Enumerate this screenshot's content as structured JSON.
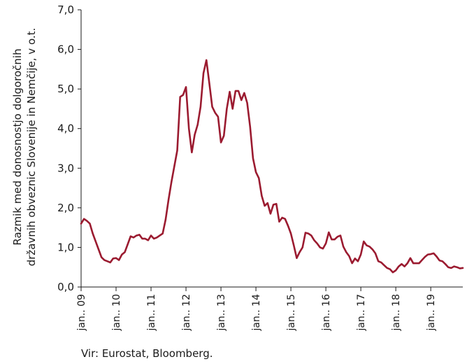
{
  "chart_data": {
    "type": "line",
    "title": "",
    "xlabel": "",
    "ylabel_lines": [
      "Razmik med donosnostjo dolgoročnih",
      "državnih obveznic Slovenije in Nemčije, v o.t."
    ],
    "source": "Vir: Eurostat, Bloomberg.",
    "x_start": "2009-01",
    "x_end": "2019-12",
    "ylim": [
      0,
      7
    ],
    "y_ticks": [
      "0,0",
      "1,0",
      "2,0",
      "3,0",
      "4,0",
      "5,0",
      "6,0",
      "7,0"
    ],
    "x_ticks": [
      {
        "label": "jan.. 09",
        "date": "2009-01"
      },
      {
        "label": "jan.. 10",
        "date": "2010-01"
      },
      {
        "label": "jan.. 11",
        "date": "2011-01"
      },
      {
        "label": "jan.. 12",
        "date": "2012-01"
      },
      {
        "label": "jan.. 13",
        "date": "2013-01"
      },
      {
        "label": "jan.. 14",
        "date": "2014-01"
      },
      {
        "label": "jan.. 15",
        "date": "2015-01"
      },
      {
        "label": "jan.. 16",
        "date": "2016-01"
      },
      {
        "label": "jan.. 17",
        "date": "2017-01"
      },
      {
        "label": "jan.. 18",
        "date": "2018-01"
      },
      {
        "label": "jan.. 19",
        "date": "2019-01"
      }
    ],
    "grid": false,
    "legend": "none",
    "line_color": "#9b1b30",
    "series": [
      {
        "values": [
          1.6,
          1.72,
          1.67,
          1.6,
          1.35,
          1.15,
          0.95,
          0.75,
          0.68,
          0.65,
          0.62,
          0.72,
          0.73,
          0.68,
          0.82,
          0.88,
          1.08,
          1.28,
          1.25,
          1.3,
          1.32,
          1.22,
          1.22,
          1.18,
          1.3,
          1.22,
          1.25,
          1.3,
          1.35,
          1.7,
          2.2,
          2.65,
          3.05,
          3.45,
          4.8,
          4.85,
          5.05,
          4.0,
          3.4,
          3.85,
          4.1,
          4.55,
          5.4,
          5.73,
          5.15,
          4.55,
          4.4,
          4.3,
          3.65,
          3.82,
          4.5,
          4.93,
          4.5,
          4.95,
          4.95,
          4.72,
          4.9,
          4.65,
          4.05,
          3.25,
          2.9,
          2.75,
          2.3,
          2.05,
          2.12,
          1.85,
          2.08,
          2.1,
          1.65,
          1.75,
          1.72,
          1.55,
          1.35,
          1.05,
          0.73,
          0.88,
          1.0,
          1.37,
          1.35,
          1.3,
          1.18,
          1.1,
          1.0,
          0.97,
          1.1,
          1.38,
          1.2,
          1.2,
          1.27,
          1.3,
          1.02,
          0.88,
          0.78,
          0.6,
          0.72,
          0.65,
          0.82,
          1.15,
          1.05,
          1.02,
          0.95,
          0.85,
          0.65,
          0.62,
          0.55,
          0.48,
          0.45,
          0.37,
          0.42,
          0.52,
          0.58,
          0.52,
          0.6,
          0.73,
          0.6,
          0.6,
          0.6,
          0.68,
          0.76,
          0.82,
          0.83,
          0.85,
          0.77,
          0.67,
          0.65,
          0.58,
          0.5,
          0.48,
          0.52,
          0.5,
          0.47,
          0.48
        ]
      }
    ]
  }
}
